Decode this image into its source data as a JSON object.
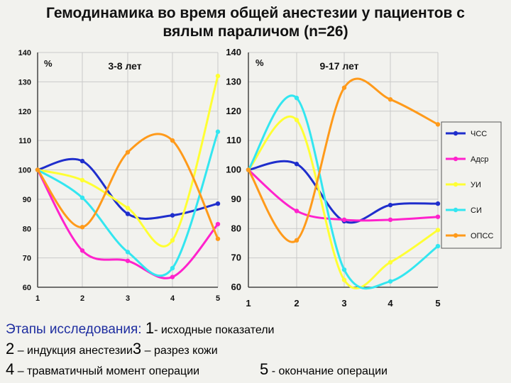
{
  "title_line1": "Гемодинамика во время общей анестезии у пациентов с",
  "title_line2": "вялым параличом (n=26)",
  "chart_data": [
    {
      "type": "line",
      "title": "3-8 лет",
      "ylabel": "%",
      "ylim": [
        60,
        140
      ],
      "yticks": [
        "60",
        "70",
        "80",
        "90",
        "100",
        "110",
        "120",
        "130",
        "140"
      ],
      "x": [
        1,
        2,
        3,
        4,
        5
      ],
      "xticks": [
        "1",
        "2",
        "3",
        "4",
        "5"
      ],
      "grid": true,
      "series": [
        {
          "name": "ЧСС",
          "color": "#1f2ecc",
          "values": [
            100,
            103,
            85,
            84.5,
            88.5
          ]
        },
        {
          "name": "Адср",
          "color": "#ff22cc",
          "values": [
            100,
            72.5,
            69,
            63.5,
            81.5
          ]
        },
        {
          "name": "УИ",
          "color": "#ffff33",
          "values": [
            100,
            96.5,
            87,
            76,
            132
          ]
        },
        {
          "name": "СИ",
          "color": "#33e6f0",
          "values": [
            100,
            90.5,
            72,
            66.5,
            113
          ]
        },
        {
          "name": "ОПСС",
          "color": "#ff9a1a",
          "values": [
            100,
            80.5,
            106,
            110,
            76.5
          ]
        }
      ]
    },
    {
      "type": "line",
      "title": "9-17 лет",
      "ylabel": "%",
      "ylim": [
        60,
        140
      ],
      "yticks": [
        "60",
        "70",
        "80",
        "90",
        "100",
        "110",
        "120",
        "130",
        "140"
      ],
      "x": [
        1,
        2,
        3,
        4,
        5
      ],
      "xticks": [
        "1",
        "2",
        "3",
        "4",
        "5"
      ],
      "grid": true,
      "legend": "right",
      "series": [
        {
          "name": "ЧСС",
          "color": "#1f2ecc",
          "values": [
            100,
            102,
            82.5,
            88,
            88.5
          ]
        },
        {
          "name": "Адср",
          "color": "#ff22cc",
          "values": [
            100,
            86,
            83,
            83,
            84
          ]
        },
        {
          "name": "УИ",
          "color": "#ffff33",
          "values": [
            100,
            117,
            62.5,
            68.5,
            79.5
          ]
        },
        {
          "name": "СИ",
          "color": "#33e6f0",
          "values": [
            100,
            124.5,
            66,
            62,
            74
          ]
        },
        {
          "name": "ОПСС",
          "color": "#ff9a1a",
          "values": [
            100,
            76,
            128,
            124,
            115.5
          ]
        }
      ]
    }
  ],
  "footer": {
    "line1_prefix": "Этапы исследования:",
    "line1_num": "1",
    "line1_text": "- исходные показатели",
    "line2_num": "2",
    "line2_text": "– индукция анестезии",
    "line2b_num": "3",
    "line2b_text": "– разрез кожи",
    "line3_num": "4",
    "line3_text": "– травматичный момент операции",
    "line3b_num": "5",
    "line3b_text": "- окончание операции"
  }
}
